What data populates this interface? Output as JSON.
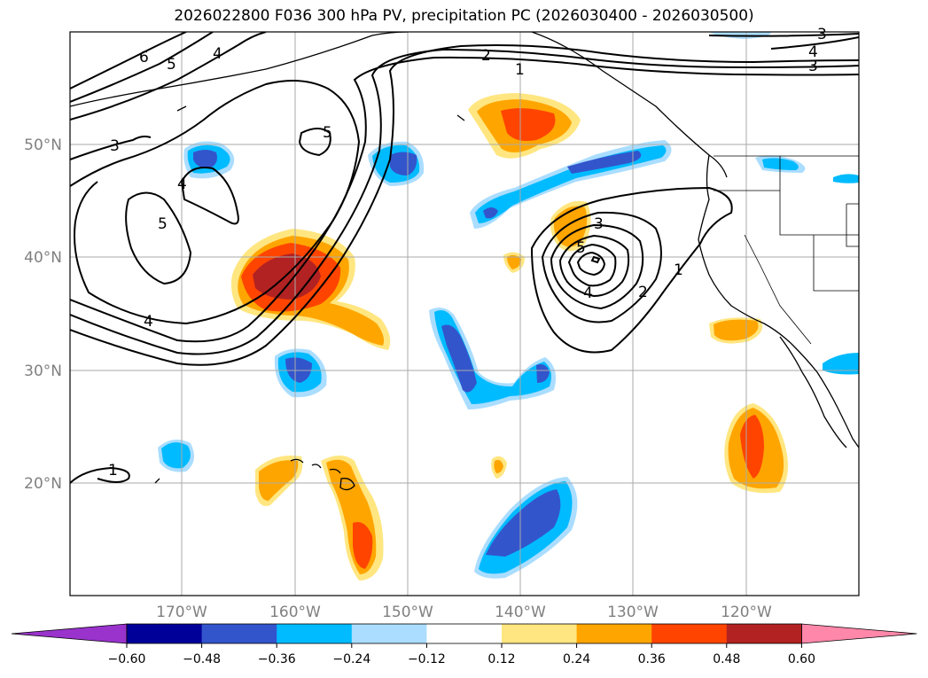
{
  "title": "2026022800 F036 300 hPa PV, precipitation PC (2026030400 - 2026030500)",
  "lat_labels": [
    "50°N",
    "40°N",
    "30°N",
    "20°N"
  ],
  "lon_labels": [
    "170°W",
    "160°W",
    "150°W",
    "140°W",
    "130°W",
    "120°W"
  ],
  "colorbar": {
    "ticks": [
      "−0.60",
      "−0.48",
      "−0.36",
      "−0.24",
      "−0.12",
      "0.12",
      "0.24",
      "0.36",
      "0.48",
      "0.60"
    ],
    "colors": [
      "#9933cc",
      "#000099",
      "#3355cc",
      "#00bbff",
      "#aaddff",
      "#ffffff",
      "#ffe680",
      "#ffa500",
      "#ff4400",
      "#b22222",
      "#ff88aa"
    ]
  },
  "pv_contour_labels": [
    "6",
    "5",
    "4",
    "3",
    "2",
    "1",
    "5",
    "4",
    "5",
    "3",
    "4",
    "4",
    "3",
    "5",
    "3",
    "4",
    "2",
    "1",
    "1"
  ],
  "colors": {
    "neg_strong": "#3355cc",
    "neg_mid": "#00bbff",
    "neg_weak": "#aaddff",
    "pos_weak": "#ffe680",
    "pos_mid": "#ffa500",
    "pos_strong": "#ff4400",
    "pos_max": "#b22222"
  }
}
